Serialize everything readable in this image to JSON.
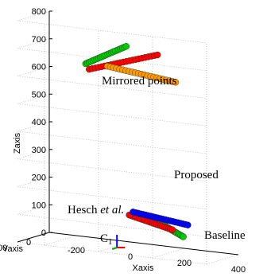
{
  "chart_data": {
    "type": "scatter3d",
    "xlabel": "Xaxis",
    "ylabel": "Yaxis",
    "zlabel": "Zaxis",
    "xlim": [
      -300,
      400
    ],
    "ylim": [
      0,
      400
    ],
    "zlim": [
      0,
      800
    ],
    "z_ticks": [
      "0",
      "100",
      "200",
      "300",
      "400",
      "500",
      "600",
      "700",
      "800"
    ],
    "x_ticks": [
      "-200",
      "0",
      "200",
      "400"
    ],
    "y_ticks": [
      "0",
      "400"
    ],
    "grid": true,
    "annotations": {
      "mirrored": "Mirrored points",
      "proposed": "Proposed",
      "hesch_a": "Hesch ",
      "hesch_b": "et al.",
      "baseline": "Baseline",
      "camera": "C",
      "camera_sub": "1"
    },
    "series": [
      {
        "role": "baseline",
        "color": "#00cc00",
        "points": [
          [
            130,
            130,
            105
          ],
          [
            230,
            115,
            55
          ]
        ]
      },
      {
        "role": "hesch",
        "color": "#ff0000",
        "points": [
          [
            40,
            150,
            115
          ],
          [
            200,
            150,
            80
          ]
        ]
      },
      {
        "role": "proposed",
        "color": "#0000ff",
        "points": [
          [
            60,
            170,
            130
          ],
          [
            260,
            160,
            105
          ]
        ]
      },
      {
        "role": "mirrored-baseline",
        "color": "#00cc00",
        "points": [
          [
            -130,
            120,
            640
          ],
          [
            20,
            120,
            720
          ]
        ]
      },
      {
        "role": "mirrored-hesch",
        "color": "#ff0000",
        "points": [
          [
            -120,
            110,
            620
          ],
          [
            130,
            100,
            700
          ]
        ]
      },
      {
        "role": "mirrored-proposed",
        "color": "#ff9900",
        "points": [
          [
            -50,
            120,
            640
          ],
          [
            200,
            110,
            610
          ]
        ]
      }
    ]
  }
}
